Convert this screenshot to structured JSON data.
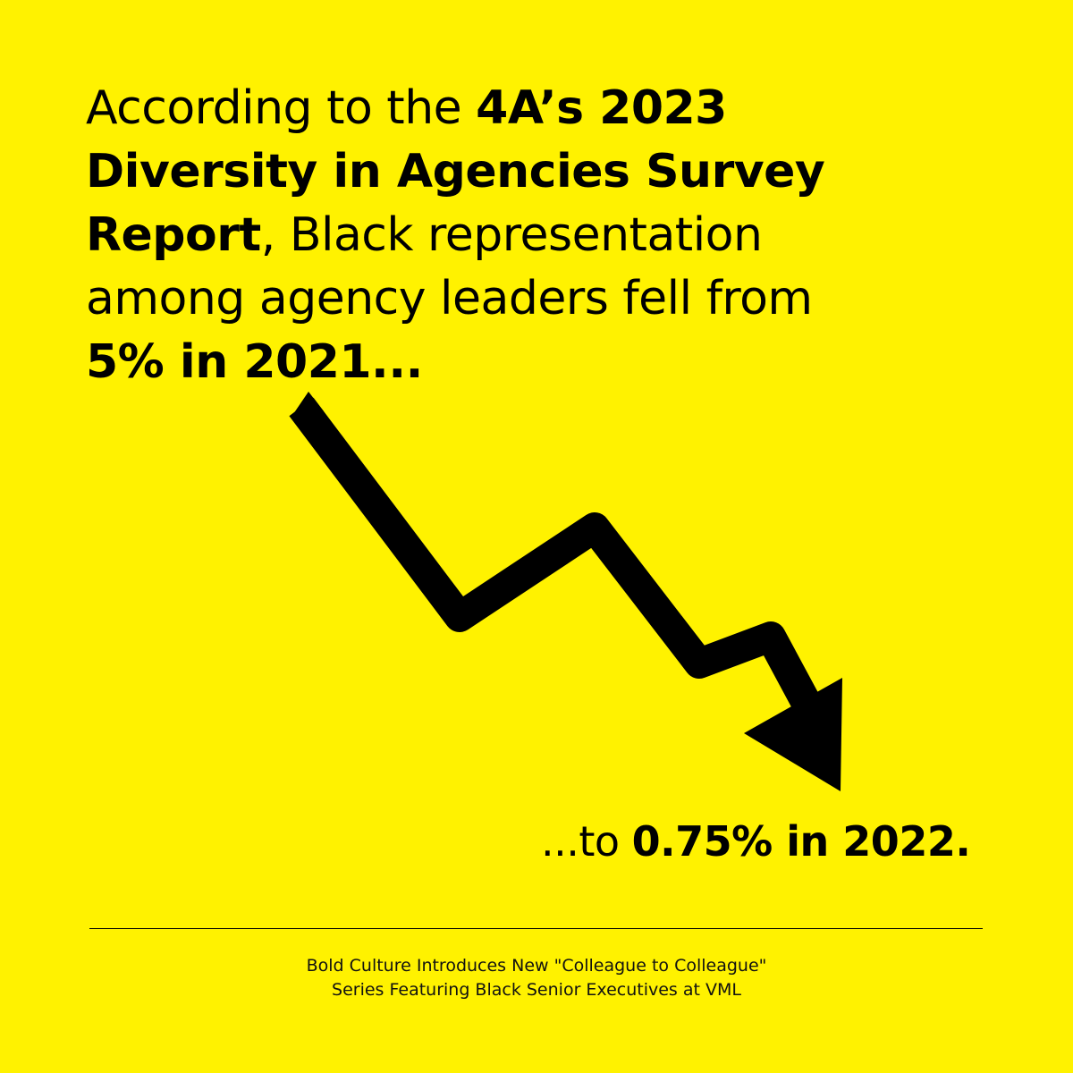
{
  "colors": {
    "background": "#FFF200",
    "text": "#000000"
  },
  "headline": {
    "part1": "According to the ",
    "bold1": "4A’s 2023 Diversity in Agencies Survey Report",
    "part2": ", Black representation among agency leaders fell from ",
    "bold2": "5% in 2021..."
  },
  "arrow": {
    "icon": "downward-trend-arrow-icon"
  },
  "conclusion": {
    "prefix": "...to ",
    "bold": "0.75% in 2022."
  },
  "footer": {
    "line1": "Bold Culture Introduces New \"Colleague to Colleague\"",
    "line2": "Series Featuring Black Senior Executives at VML"
  }
}
